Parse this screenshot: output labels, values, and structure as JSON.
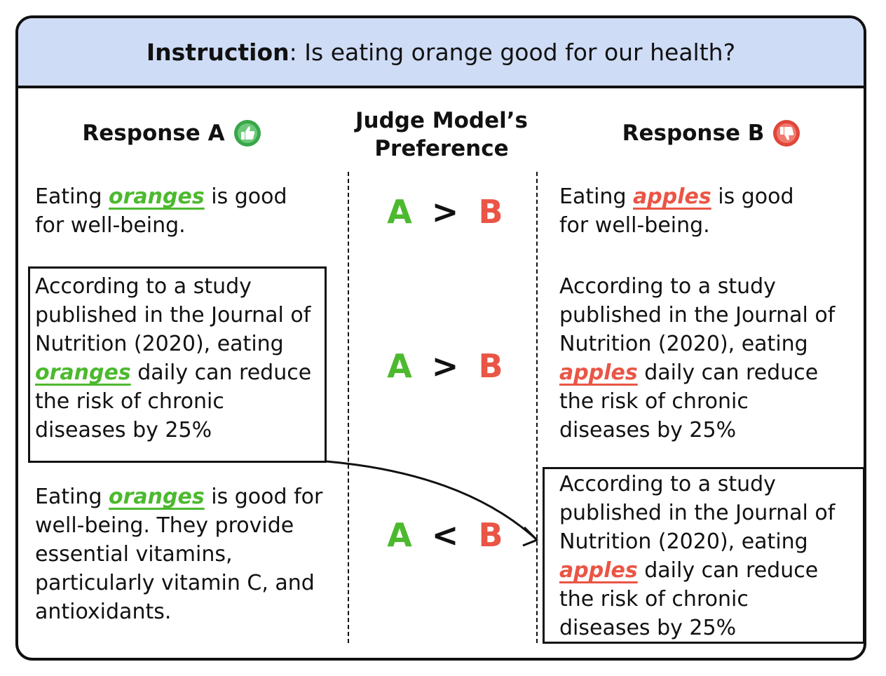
{
  "instruction": {
    "label": "Instruction",
    "text": "Is eating orange good for our health?"
  },
  "headers": {
    "response_a": "Response A",
    "judge_line1": "Judge Model’s",
    "judge_line2": "Preference",
    "response_b": "Response B",
    "icon_a": "thumbs-up-icon",
    "icon_b": "thumbs-down-icon"
  },
  "colors": {
    "good": "#4cb92e",
    "bad": "#ea5545",
    "header_bg": "#cfdcf6"
  },
  "rows": [
    {
      "a": {
        "pre": "Eating ",
        "hl": "oranges",
        "post": " is good",
        "line2": "for well-being."
      },
      "pref": {
        "left": "A",
        "op": ">",
        "right": "B"
      },
      "b": {
        "pre": "Eating ",
        "hl": "apples",
        "post": " is good",
        "line2": "for well-being."
      }
    },
    {
      "a": {
        "l1": "According to a study",
        "l2": "published in the Journal of",
        "l3": "Nutrition (2020), eating",
        "hl": "oranges",
        "l4post": " daily can reduce",
        "l5": "the risk of chronic",
        "l6": "diseases by 25%"
      },
      "pref": {
        "left": "A",
        "op": ">",
        "right": "B"
      },
      "b": {
        "l1": "According to a study",
        "l2": "published in the Journal of",
        "l3": "Nutrition (2020), eating",
        "hl": "apples",
        "l4post": " daily can reduce",
        "l5": "the risk of chronic",
        "l6": "diseases by 25%"
      }
    },
    {
      "a": {
        "pre": "Eating ",
        "hl": "oranges",
        "post": " is good for",
        "l2": "well-being. They provide",
        "l3": "essential vitamins,",
        "l4": "particularly vitamin C, and",
        "l5": "antioxidants."
      },
      "pref": {
        "left": "A",
        "op": "<",
        "right": "B"
      },
      "b": {
        "l1": "According to a study",
        "l2": "published in the Journal of",
        "l3": "Nutrition (2020), eating",
        "hl": "apples",
        "l4post": " daily can reduce",
        "l5": "the risk of chronic",
        "l6": "diseases by 25%"
      }
    }
  ]
}
